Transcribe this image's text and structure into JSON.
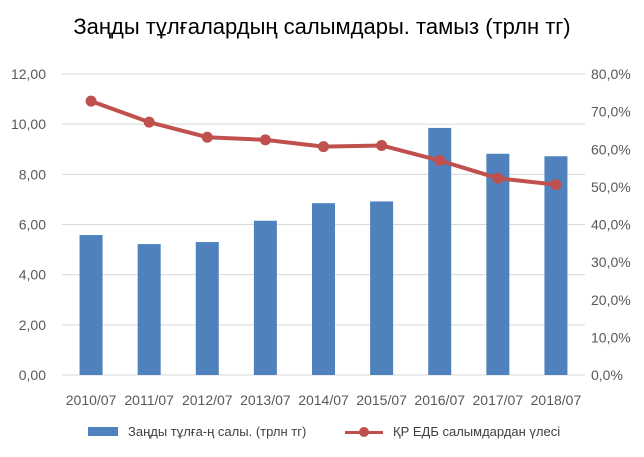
{
  "chart_data": {
    "type": "bar",
    "title": "Заңды тұлғалардың салымдары. тамыз (трлн тг)",
    "categories": [
      "2010/07",
      "2011/07",
      "2012/07",
      "2013/07",
      "2014/07",
      "2015/07",
      "2016/07",
      "2017/07",
      "2018/07"
    ],
    "series": [
      {
        "name": "Заңды тұлға-ң салы. (трлн тг)",
        "type": "bar",
        "axis": "left",
        "color": "#4F81BD",
        "values": [
          5.58,
          5.22,
          5.3,
          6.15,
          6.85,
          6.92,
          9.85,
          8.82,
          8.72
        ]
      },
      {
        "name": "ҚР ЕДБ салымдардан үлесі",
        "type": "line",
        "axis": "right",
        "color": "#C0504D",
        "values": [
          72.8,
          67.2,
          63.2,
          62.5,
          60.7,
          61.0,
          57.0,
          52.3,
          50.6
        ]
      }
    ],
    "ylim_left": [
      0,
      12
    ],
    "yticks_left": [
      "0,00",
      "2,00",
      "4,00",
      "6,00",
      "8,00",
      "10,00",
      "12,00"
    ],
    "ylim_right": [
      0,
      80
    ],
    "yticks_right": [
      "0,0%",
      "10,0%",
      "20,0%",
      "30,0%",
      "40,0%",
      "50,0%",
      "60,0%",
      "70,0%",
      "80,0%"
    ],
    "grid": true,
    "legend": "bottom"
  }
}
